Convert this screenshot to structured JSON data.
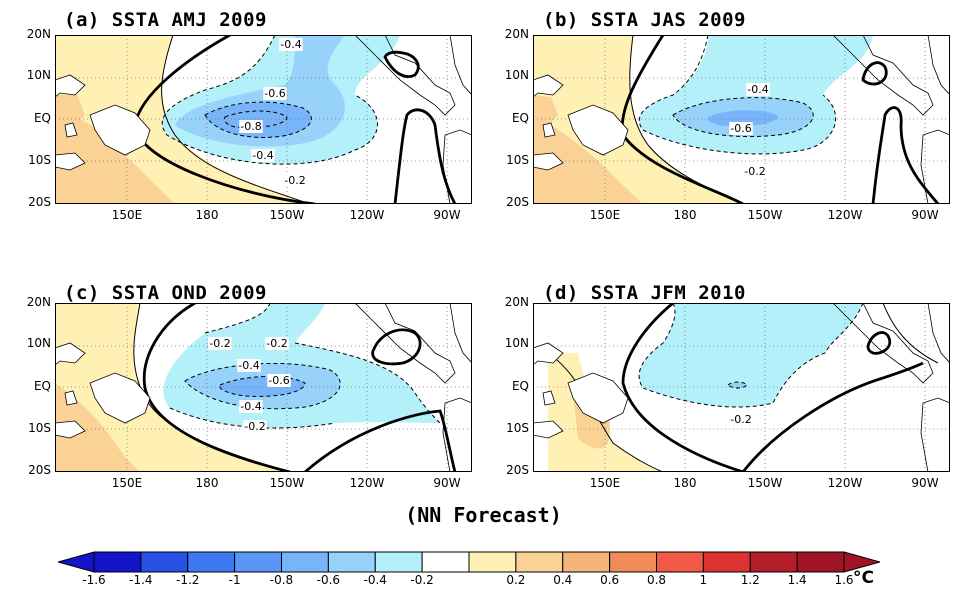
{
  "panels": [
    {
      "title": "(a) SSTA AMJ 2009",
      "contour_labels": [
        "-0.4",
        "-0.6",
        "-0.8",
        "-0.4",
        "-0.2"
      ]
    },
    {
      "title": "(b) SSTA JAS 2009",
      "contour_labels": [
        "-0.4",
        "-0.6",
        "-0.2"
      ]
    },
    {
      "title": "(c) SSTA OND 2009",
      "contour_labels": [
        "-0.2",
        "-0.2",
        "-0.4",
        "-0.6",
        "-0.4",
        "-0.2"
      ]
    },
    {
      "title": "(d) SSTA JFM 2010",
      "contour_labels": [
        "-0.2"
      ]
    }
  ],
  "lat_labels": [
    "20N",
    "10N",
    "EQ",
    "10S",
    "20S"
  ],
  "lon_labels": [
    "150E",
    "180",
    "150W",
    "120W",
    "90W"
  ],
  "caption": "(NN Forecast)",
  "colorbar": {
    "labels": [
      "-1.6",
      "-1.4",
      "-1.2",
      "-1",
      "-0.8",
      "-0.6",
      "-0.4",
      "-0.2",
      "0.2",
      "0.4",
      "0.6",
      "0.8",
      "1",
      "1.2",
      "1.4",
      "1.6"
    ],
    "unit": "°C",
    "colors": [
      "#1414c8",
      "#2850e6",
      "#3c78f0",
      "#5a96f5",
      "#78b4fa",
      "#96d2fa",
      "#b4f0fa",
      "#ffffff",
      "#fff0b4",
      "#fad296",
      "#f5b478",
      "#f08c5a",
      "#f05a46",
      "#dc3232",
      "#b41e28",
      "#a01428"
    ]
  }
}
